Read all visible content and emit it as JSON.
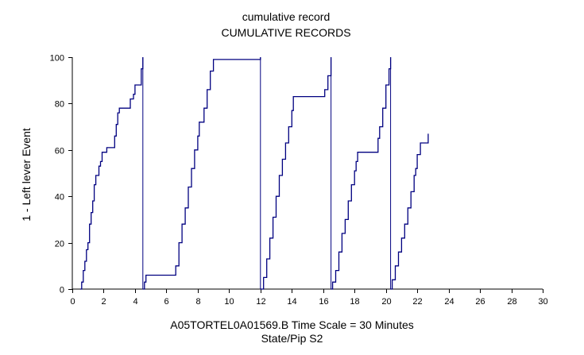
{
  "chart_data": {
    "type": "line",
    "title": "cumulative record",
    "subtitle": "CUMULATIVE RECORDS",
    "ylabel": "1 - Left lever  Event",
    "xlabel_line1": "A05TORTEL0A01569.B   Time Scale = 30 Minutes",
    "xlabel_line2": "State/Pip S2",
    "xlim": [
      0,
      30
    ],
    "ylim": [
      0,
      100
    ],
    "xticks": [
      0,
      2,
      4,
      6,
      8,
      10,
      12,
      14,
      16,
      18,
      20,
      22,
      24,
      26,
      28,
      30
    ],
    "yticks": [
      0,
      20,
      40,
      60,
      80,
      100
    ],
    "line_color": "#000080",
    "segments": [
      {
        "points": [
          [
            0.5,
            0
          ],
          [
            0.6,
            3
          ],
          [
            0.7,
            8
          ],
          [
            0.8,
            12
          ],
          [
            0.9,
            17
          ],
          [
            1.0,
            20
          ],
          [
            1.1,
            28
          ],
          [
            1.2,
            33
          ],
          [
            1.3,
            38
          ],
          [
            1.4,
            45
          ],
          [
            1.5,
            49
          ],
          [
            1.6,
            49
          ],
          [
            1.7,
            53
          ],
          [
            1.8,
            55
          ],
          [
            1.9,
            59
          ],
          [
            2.1,
            59
          ],
          [
            2.2,
            61
          ],
          [
            2.6,
            61
          ],
          [
            2.7,
            66
          ],
          [
            2.8,
            71
          ],
          [
            2.9,
            76
          ],
          [
            3.0,
            78
          ],
          [
            3.6,
            78
          ],
          [
            3.7,
            82
          ],
          [
            3.9,
            84
          ],
          [
            4.0,
            88
          ],
          [
            4.3,
            88
          ],
          [
            4.4,
            95
          ],
          [
            4.5,
            100
          ]
        ]
      },
      {
        "points": [
          [
            4.5,
            0
          ],
          [
            4.6,
            3
          ],
          [
            4.7,
            6
          ],
          [
            6.5,
            6
          ],
          [
            6.6,
            10
          ],
          [
            6.8,
            20
          ],
          [
            7.0,
            28
          ],
          [
            7.2,
            35
          ],
          [
            7.4,
            44
          ],
          [
            7.6,
            52
          ],
          [
            7.8,
            60
          ],
          [
            8.0,
            66
          ],
          [
            8.1,
            72
          ],
          [
            8.3,
            72
          ],
          [
            8.4,
            78
          ],
          [
            8.6,
            86
          ],
          [
            8.8,
            94
          ],
          [
            9.0,
            99
          ],
          [
            12.0,
            99
          ],
          [
            12.0,
            100
          ]
        ]
      },
      {
        "points": [
          [
            12.0,
            0
          ],
          [
            12.2,
            5
          ],
          [
            12.4,
            13
          ],
          [
            12.6,
            22
          ],
          [
            12.8,
            31
          ],
          [
            13.0,
            40
          ],
          [
            13.2,
            49
          ],
          [
            13.4,
            56
          ],
          [
            13.6,
            63
          ],
          [
            13.8,
            70
          ],
          [
            14.0,
            77
          ],
          [
            14.1,
            83
          ],
          [
            16.0,
            83
          ],
          [
            16.1,
            86
          ],
          [
            16.3,
            92
          ],
          [
            16.5,
            100
          ]
        ]
      },
      {
        "points": [
          [
            16.5,
            0
          ],
          [
            16.6,
            3
          ],
          [
            16.8,
            8
          ],
          [
            17.0,
            16
          ],
          [
            17.2,
            24
          ],
          [
            17.4,
            30
          ],
          [
            17.6,
            38
          ],
          [
            17.8,
            45
          ],
          [
            18.0,
            51
          ],
          [
            18.1,
            55
          ],
          [
            18.2,
            59
          ],
          [
            19.4,
            59
          ],
          [
            19.5,
            65
          ],
          [
            19.6,
            70
          ],
          [
            19.8,
            78
          ],
          [
            20.0,
            88
          ],
          [
            20.2,
            95
          ],
          [
            20.3,
            100
          ]
        ]
      },
      {
        "points": [
          [
            20.3,
            0
          ],
          [
            20.4,
            4
          ],
          [
            20.6,
            10
          ],
          [
            20.8,
            16
          ],
          [
            21.0,
            22
          ],
          [
            21.2,
            28
          ],
          [
            21.4,
            35
          ],
          [
            21.6,
            42
          ],
          [
            21.8,
            49
          ],
          [
            21.9,
            52
          ],
          [
            22.0,
            58
          ],
          [
            22.2,
            63
          ],
          [
            22.6,
            63
          ],
          [
            22.7,
            67
          ]
        ]
      }
    ],
    "reset_x": [
      4.5,
      12.0,
      16.5,
      20.3
    ]
  }
}
